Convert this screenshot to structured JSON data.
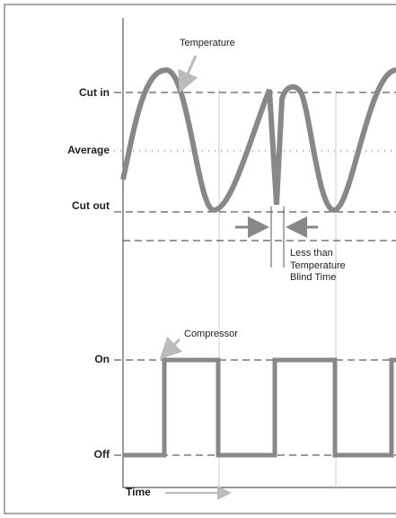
{
  "labels": {
    "temperature": "Temperature",
    "cut_in": "Cut in",
    "average": "Average",
    "cut_out": "Cut out",
    "blind_time": [
      "Less than",
      "Temperature",
      "Blind Time"
    ],
    "compressor": "Compressor",
    "on": "On",
    "off": "Off",
    "time": "Time"
  }
}
